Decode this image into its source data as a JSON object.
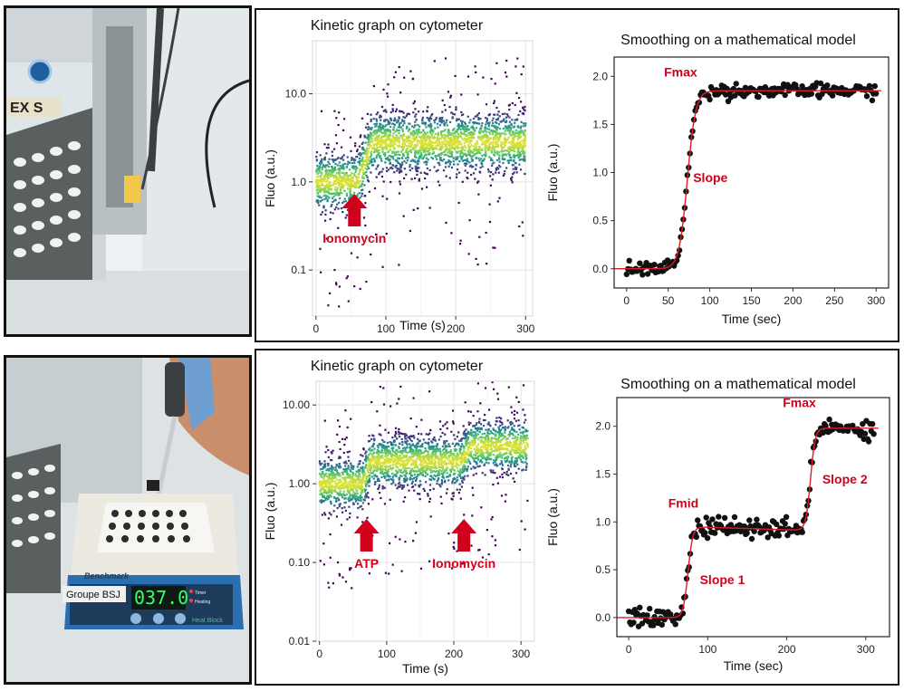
{
  "photos": {
    "top": {
      "machine_label": "EX S"
    },
    "bottom": {
      "brand": "Benchmark",
      "group_label": "Groupe BSJ",
      "display": "037.0",
      "timer_label": "Timer",
      "heating_label": "Heating",
      "product_label": "Heat Block"
    }
  },
  "colors": {
    "accent": "#d0021b",
    "fit": "#e01b24",
    "points": "#111111"
  },
  "chart_data": [
    {
      "type": "scatter",
      "title": "Kinetic graph on cytometer",
      "xlabel": "Time (s)",
      "ylabel": "Fluo (a.u.)",
      "xscale": "linear",
      "yscale": "log",
      "xlim": [
        -5,
        310
      ],
      "ylim": [
        0.03,
        40
      ],
      "xticks": [
        0,
        100,
        200,
        300
      ],
      "xtick_labels": [
        "0",
        "100",
        "200",
        "300"
      ],
      "yticks": [
        0.1,
        1,
        10
      ],
      "ytick_labels": [
        "0.1",
        "1.0",
        "10.0"
      ],
      "grid": true,
      "density_colormap": "viridis",
      "phases": [
        {
          "t_start": 0,
          "t_end": 60,
          "median": 1.0
        },
        {
          "t_start": 80,
          "t_end": 300,
          "median": 2.8
        }
      ],
      "annotations": [
        {
          "text": "Ionomycin",
          "x": 55
        }
      ]
    },
    {
      "type": "scatter",
      "title": "Smoothing on a mathematical model",
      "xlabel": "Time (sec)",
      "ylabel": "Fluo (a.u.)",
      "xlim": [
        -15,
        315
      ],
      "ylim": [
        -0.2,
        2.2
      ],
      "xticks": [
        0,
        50,
        100,
        150,
        200,
        250,
        300
      ],
      "xtick_labels": [
        "0",
        "50",
        "100",
        "150",
        "200",
        "250",
        "300"
      ],
      "yticks": [
        0,
        0.5,
        1,
        1.5,
        2
      ],
      "ytick_labels": [
        "0.0",
        "0.5",
        "1.0",
        "1.5",
        "2.0"
      ],
      "grid": false,
      "series": [
        {
          "kind": "points",
          "x_start": 0,
          "x_end": 300,
          "n": 190,
          "noise": 0.035
        },
        {
          "kind": "fit",
          "model": "sigmoid",
          "baseline": 0.0,
          "plateau": 1.85,
          "midpoint": 73,
          "width": 5
        }
      ],
      "annotations": [
        {
          "text": "Fmax",
          "x": 45,
          "y": 2.0
        },
        {
          "text": "Slope",
          "x": 80,
          "y": 0.9
        }
      ]
    },
    {
      "type": "scatter",
      "title": "Kinetic graph on cytometer",
      "xlabel": "Time (s)",
      "ylabel": "Fluo (a.u.)",
      "xscale": "linear",
      "yscale": "log",
      "xlim": [
        -5,
        320
      ],
      "ylim": [
        0.01,
        20
      ],
      "xticks": [
        0,
        100,
        200,
        300
      ],
      "xtick_labels": [
        "0",
        "100",
        "200",
        "300"
      ],
      "yticks": [
        0.01,
        0.1,
        1,
        10
      ],
      "ytick_labels": [
        "0.01",
        "0.10",
        "1.00",
        "10.00"
      ],
      "grid": true,
      "density_colormap": "viridis",
      "phases": [
        {
          "t_start": 0,
          "t_end": 65,
          "median": 1.0
        },
        {
          "t_start": 75,
          "t_end": 210,
          "median": 1.9
        },
        {
          "t_start": 225,
          "t_end": 310,
          "median": 3.0
        }
      ],
      "annotations": [
        {
          "text": "ATP",
          "x": 70
        },
        {
          "text": "Ionomycin",
          "x": 215
        }
      ]
    },
    {
      "type": "scatter",
      "title": "Smoothing on a mathematical model",
      "xlabel": "Time (sec)",
      "ylabel": "Fluo (a.u.)",
      "xlim": [
        -15,
        330
      ],
      "ylim": [
        -0.2,
        2.3
      ],
      "xticks": [
        0,
        100,
        200,
        300
      ],
      "xtick_labels": [
        "0",
        "100",
        "200",
        "300"
      ],
      "yticks": [
        0,
        0.5,
        1,
        1.5,
        2
      ],
      "ytick_labels": [
        "0.0",
        "0.5",
        "1.0",
        "1.5",
        "2.0"
      ],
      "grid": false,
      "series": [
        {
          "kind": "points",
          "x_start": 0,
          "x_end": 310,
          "n": 200,
          "noise": 0.05
        },
        {
          "kind": "fit",
          "model": "double-sigmoid",
          "baseline": 0.0,
          "mid_level": 0.95,
          "drift": -0.04,
          "plateau": 1.98,
          "midpoint1": 75,
          "midpoint2": 230,
          "width": 3
        }
      ],
      "annotations": [
        {
          "text": "Fmax",
          "x": 195,
          "y": 2.2
        },
        {
          "text": "Fmid",
          "x": 50,
          "y": 1.15
        },
        {
          "text": "Slope 2",
          "x": 245,
          "y": 1.4
        },
        {
          "text": "Slope 1",
          "x": 90,
          "y": 0.35
        }
      ]
    }
  ]
}
